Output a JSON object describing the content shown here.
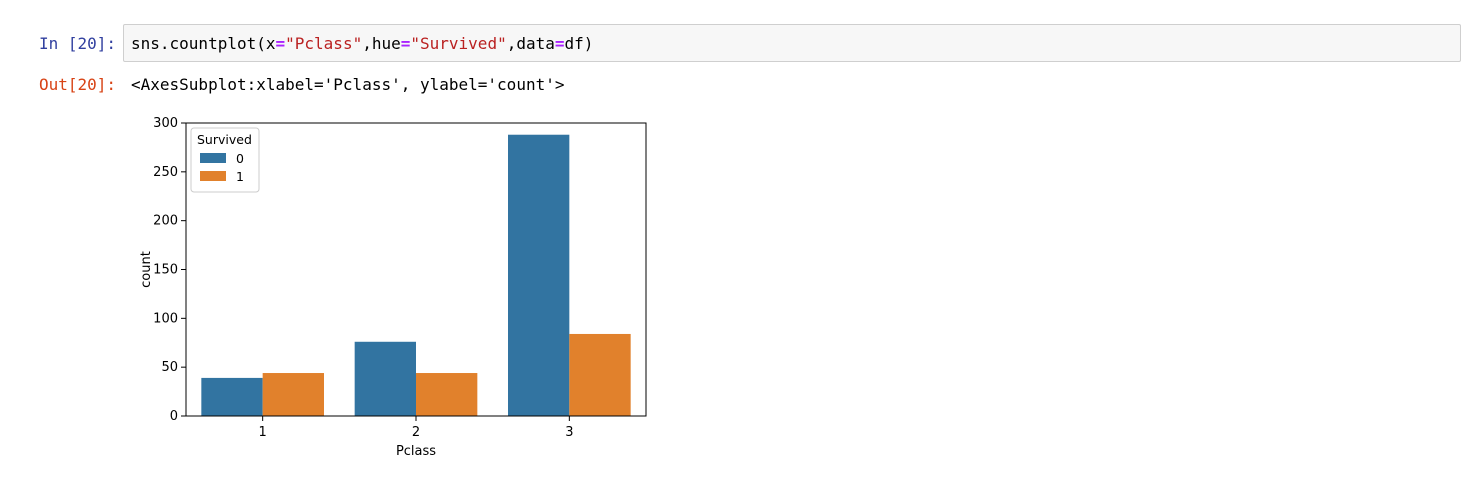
{
  "cell": {
    "in_prompt": "In [20]:",
    "out_prompt": "Out[20]:",
    "code": {
      "fn": "sns.countplot(x",
      "eq1": "=",
      "s1": "\"Pclass\"",
      "mid1": ",hue",
      "eq2": "=",
      "s2": "\"Survived\"",
      "mid2": ",data",
      "eq3": "=",
      "tail": "df)"
    },
    "output_text": "<AxesSubplot:xlabel='Pclass', ylabel='count'>"
  },
  "chart_data": {
    "type": "bar",
    "categories": [
      "1",
      "2",
      "3"
    ],
    "series": [
      {
        "name": "0",
        "values": [
          39,
          76,
          288
        ],
        "color": "#3274a1"
      },
      {
        "name": "1",
        "values": [
          44,
          44,
          84
        ],
        "color": "#e1812c"
      }
    ],
    "xlabel": "Pclass",
    "ylabel": "count",
    "ylim": [
      0,
      300
    ],
    "yticks": [
      "0",
      "50",
      "100",
      "150",
      "200",
      "250",
      "300"
    ],
    "legend": {
      "title": "Survived",
      "placement": "upper-left"
    },
    "grid": false
  }
}
